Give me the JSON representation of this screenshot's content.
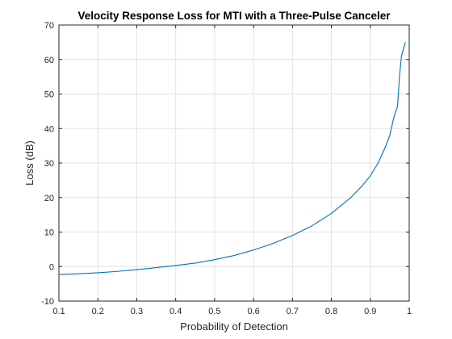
{
  "chart_data": {
    "type": "line",
    "title": "Velocity Response Loss for MTI with a Three-Pulse Canceler",
    "xlabel": "Probability of Detection",
    "ylabel": "Loss (dB)",
    "xlim": [
      0.1,
      1
    ],
    "ylim": [
      -10,
      70
    ],
    "x_ticks": [
      0.1,
      0.2,
      0.3,
      0.4,
      0.5,
      0.6,
      0.7,
      0.8,
      0.9,
      1
    ],
    "x_tick_labels": [
      "0.1",
      "0.2",
      "0.3",
      "0.4",
      "0.5",
      "0.6",
      "0.7",
      "0.8",
      "0.9",
      "1"
    ],
    "y_ticks": [
      -10,
      0,
      10,
      20,
      30,
      40,
      50,
      60,
      70
    ],
    "y_tick_labels": [
      "-10",
      "0",
      "10",
      "20",
      "30",
      "40",
      "50",
      "60",
      "70"
    ],
    "grid": true,
    "series_color": "#0072BD",
    "series": [
      {
        "x": [
          0.1,
          0.15,
          0.2,
          0.25,
          0.3,
          0.35,
          0.4,
          0.45,
          0.5,
          0.55,
          0.6,
          0.65,
          0.7,
          0.75,
          0.8,
          0.85,
          0.88,
          0.9,
          0.92,
          0.94,
          0.95,
          0.96,
          0.97,
          0.975,
          0.98,
          0.985,
          0.99
        ],
        "y": [
          -2.3,
          -2.1,
          -1.8,
          -1.4,
          -0.9,
          -0.3,
          0.3,
          1.0,
          2.0,
          3.2,
          4.8,
          6.7,
          9.0,
          11.8,
          15.4,
          20.0,
          23.5,
          26.3,
          30.0,
          35.0,
          38.0,
          43.0,
          46.5,
          55.0,
          61.0,
          63.0,
          65.0
        ]
      }
    ]
  }
}
